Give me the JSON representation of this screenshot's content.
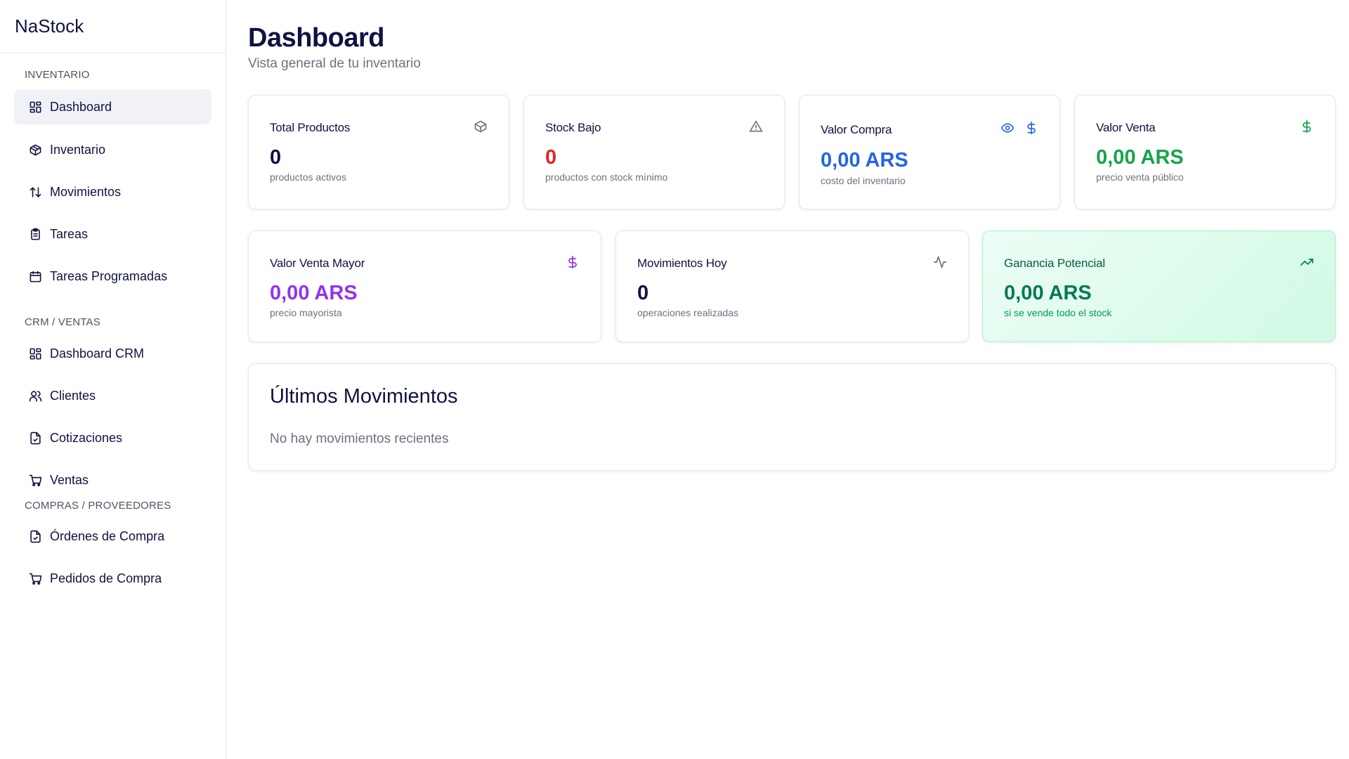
{
  "app": {
    "brand": "NaStock"
  },
  "sidebar": {
    "sections": [
      {
        "label": "INVENTARIO"
      },
      {
        "label": "CRM / VENTAS"
      },
      {
        "label": "COMPRAS / PROVEEDORES"
      }
    ],
    "items": [
      {
        "label": "Dashboard",
        "icon": "layout-grid-icon"
      },
      {
        "label": "Inventario",
        "icon": "package-icon"
      },
      {
        "label": "Movimientos",
        "icon": "arrows-up-down-icon"
      },
      {
        "label": "Tareas",
        "icon": "clipboard-list-icon"
      },
      {
        "label": "Tareas Programadas",
        "icon": "calendar-icon"
      },
      {
        "label": "Dashboard CRM",
        "icon": "layout-grid-icon"
      },
      {
        "label": "Clientes",
        "icon": "users-icon"
      },
      {
        "label": "Cotizaciones",
        "icon": "file-check-icon"
      },
      {
        "label": "Ventas",
        "icon": "shopping-cart-icon"
      },
      {
        "label": "Órdenes de Compra",
        "icon": "file-check-icon"
      },
      {
        "label": "Pedidos de Compra",
        "icon": "shopping-cart-icon"
      }
    ],
    "active_item": "Dashboard"
  },
  "header": {
    "title": "Dashboard",
    "subtitle": "Vista general de tu inventario"
  },
  "stats": {
    "total_productos": {
      "title": "Total Productos",
      "value": "0",
      "sub": "productos activos",
      "icon": "package-icon",
      "color": "#0f1241"
    },
    "stock_bajo": {
      "title": "Stock Bajo",
      "value": "0",
      "sub": "productos con stock mínimo",
      "icon": "alert-triangle-icon",
      "color": "#dc2626"
    },
    "valor_compra": {
      "title": "Valor Compra",
      "value": "0,00 ARS",
      "sub": "costo del inventario",
      "icons": [
        "eye-icon",
        "dollar-icon"
      ],
      "color": "#2563eb"
    },
    "valor_venta": {
      "title": "Valor Venta",
      "value": "0,00 ARS",
      "sub": "precio venta público",
      "icon": "dollar-icon",
      "color": "#16a34a"
    },
    "valor_venta_mayor": {
      "title": "Valor Venta Mayor",
      "value": "0,00 ARS",
      "sub": "precio mayorista",
      "icon": "dollar-icon",
      "color": "#9333ea"
    },
    "movimientos_hoy": {
      "title": "Movimientos Hoy",
      "value": "0",
      "sub": "operaciones realizadas",
      "icon": "activity-icon",
      "color": "#0f1241"
    },
    "ganancia_potencial": {
      "title": "Ganancia Potencial",
      "value": "0,00 ARS",
      "sub": "si se vende todo el stock",
      "icon": "trending-up-icon",
      "color": "#047857"
    }
  },
  "ultimos_movimientos": {
    "title": "Últimos Movimientos",
    "empty_text": "No hay movimientos recientes"
  }
}
